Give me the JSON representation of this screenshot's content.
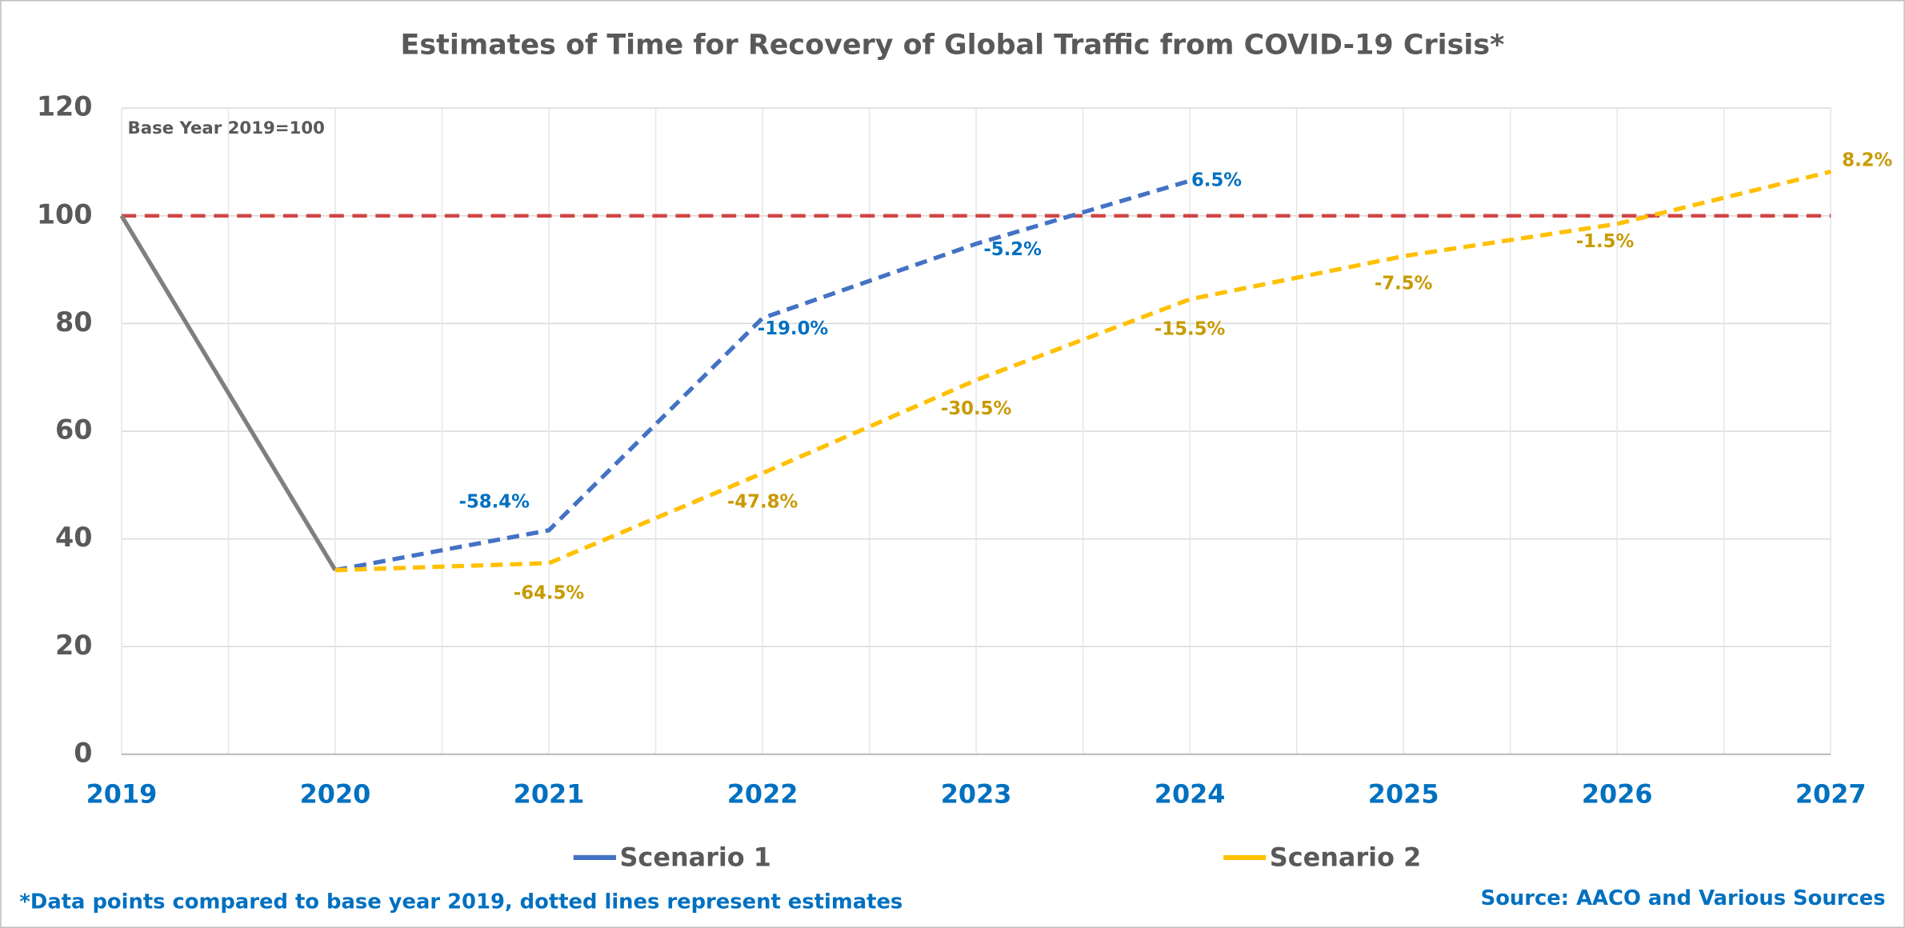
{
  "chart_data": {
    "type": "line",
    "title": "Estimates of Time for Recovery of Global Traffic from COVID-19 Crisis*",
    "annotation": "Base Year 2019=100",
    "footnote": "*Data points compared to base year 2019, dotted lines represent estimates",
    "source": "Source: AACO and Various Sources",
    "x": [
      2019,
      2020,
      2021,
      2022,
      2023,
      2024,
      2025,
      2026,
      2027
    ],
    "history": {
      "color": "#7f7f7f",
      "values": [
        100,
        34.2,
        null,
        null,
        null,
        null,
        null,
        null,
        null
      ]
    },
    "series": [
      {
        "name": "Scenario 1",
        "color": "#4472c4",
        "label_color": "#0070c0",
        "values": [
          null,
          34.2,
          41.6,
          81.0,
          94.8,
          106.5,
          null,
          null,
          null
        ],
        "change_labels": [
          null,
          null,
          "-58.4%",
          "-19.0%",
          "-5.2%",
          "6.5%",
          null,
          null,
          null
        ]
      },
      {
        "name": "Scenario 2",
        "color": "#ffc000",
        "label_color": "#c89a00",
        "values": [
          null,
          34.2,
          35.5,
          52.2,
          69.5,
          84.5,
          92.5,
          98.5,
          108.2
        ],
        "change_labels": [
          null,
          null,
          "-64.5%",
          "-47.8%",
          "-30.5%",
          "-15.5%",
          "-7.5%",
          "-1.5%",
          "8.2%"
        ]
      }
    ],
    "reference_line": {
      "value": 100,
      "color": "#d04545"
    },
    "xlim": [
      2019,
      2027
    ],
    "xticks": [
      2019,
      2020,
      2021,
      2022,
      2023,
      2024,
      2025,
      2026,
      2027
    ],
    "ylim": [
      0,
      120
    ],
    "yticks": [
      0,
      20,
      40,
      60,
      80,
      100,
      120
    ],
    "grid": true,
    "minor_xgrid": true
  }
}
